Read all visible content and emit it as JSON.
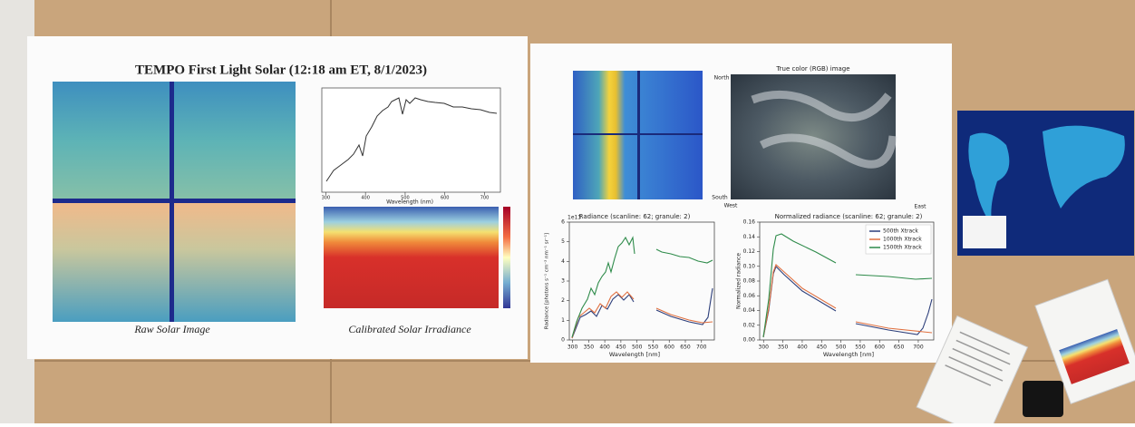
{
  "left_poster": {
    "title": "TEMPO First Light Solar (12:18 am ET, 8/1/2023)",
    "raw_image_caption": "Raw Solar Image",
    "irradiance_caption": "Calibrated Solar Irradiance",
    "spectrum_plot": {
      "x_label": "Wavelength (nm)",
      "xticks": [
        300,
        400,
        500,
        600,
        700
      ],
      "xlim": [
        290,
        740
      ]
    }
  },
  "right_poster": {
    "rgb_title": "True color (RGB) image",
    "north": "North",
    "south": "South",
    "west": "West",
    "east": "East",
    "radiance_plot": {
      "title": "Radiance (scanline: 62; granule: 2)",
      "scale_note": "1e13",
      "y_label": "Radiance [photons s⁻¹ cm⁻² nm⁻¹ sr⁻¹]",
      "x_label": "Wavelength [nm]",
      "xlim": [
        290,
        740
      ],
      "ylim": [
        0,
        6
      ],
      "xticks": [
        300,
        350,
        400,
        450,
        500,
        550,
        600,
        650,
        700
      ],
      "yticks": [
        0,
        1,
        2,
        3,
        4,
        5,
        6
      ]
    },
    "normalized_plot": {
      "title": "Normalized radiance (scanline: 62; granule: 2)",
      "y_label": "Normalized radiance",
      "x_label": "Wavelength [nm]",
      "xlim": [
        290,
        740
      ],
      "ylim": [
        0,
        0.16
      ],
      "xticks": [
        300,
        350,
        400,
        450,
        500,
        550,
        600,
        650,
        700
      ],
      "yticks": [
        {
          "value": 0,
          "label": "0.00"
        },
        {
          "value": 0.02,
          "label": "0.02"
        },
        {
          "value": 0.04,
          "label": "0.04"
        },
        {
          "value": 0.06,
          "label": "0.06"
        },
        {
          "value": 0.08,
          "label": "0.08"
        },
        {
          "value": 0.1,
          "label": "0.10"
        },
        {
          "value": 0.12,
          "label": "0.12"
        },
        {
          "value": 0.14,
          "label": "0.14"
        },
        {
          "value": 0.16,
          "label": "0.16"
        }
      ],
      "legend": [
        "500th Xtrack",
        "1000th Xtrack",
        "1500th Xtrack"
      ]
    }
  }
}
